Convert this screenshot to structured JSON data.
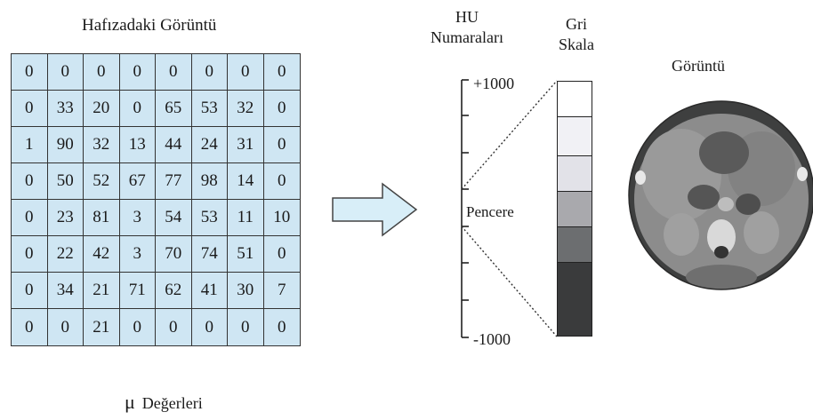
{
  "memory_image": {
    "title": "Hafızadaki Görüntü",
    "rows": [
      [
        "0",
        "0",
        "0",
        "0",
        "0",
        "0",
        "0",
        "0"
      ],
      [
        "0",
        "33",
        "20",
        "0",
        "65",
        "53",
        "32",
        "0"
      ],
      [
        "1",
        "90",
        "32",
        "13",
        "44",
        "24",
        "31",
        "0"
      ],
      [
        "0",
        "50",
        "52",
        "67",
        "77",
        "98",
        "14",
        "0"
      ],
      [
        "0",
        "23",
        "81",
        "3",
        "54",
        "53",
        "11",
        "10"
      ],
      [
        "0",
        "22",
        "42",
        "3",
        "70",
        "74",
        "51",
        "0"
      ],
      [
        "0",
        "34",
        "21",
        "71",
        "62",
        "41",
        "30",
        "7"
      ],
      [
        "0",
        "0",
        "21",
        "0",
        "0",
        "0",
        "0",
        "0"
      ]
    ],
    "caption_symbol": "μ",
    "caption_text": "Değerleri"
  },
  "hu_scale": {
    "title_line1": "HU",
    "title_line2": "Numaraları",
    "top_label": "+1000",
    "bottom_label": "-1000",
    "window_label": "Pencere"
  },
  "gray_scale": {
    "title_line1": "Gri",
    "title_line2": "Skala",
    "blocks": [
      "#ffffff",
      "#f1f1f5",
      "#e2e2e8",
      "#a9a9ad",
      "#6c6e70",
      "#3a3b3c"
    ]
  },
  "result_image": {
    "title": "Görüntü"
  }
}
